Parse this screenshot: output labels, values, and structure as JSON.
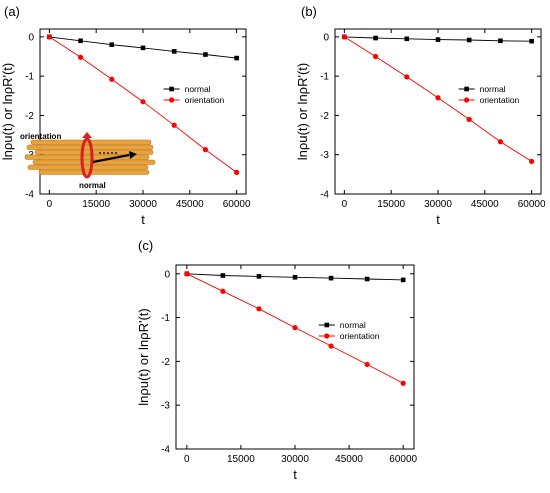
{
  "figure": {
    "inset": {
      "label_orientation": "orientation",
      "label_normal": "normal"
    }
  },
  "colors": {
    "normal": "#000000",
    "orientation": "#ff0000",
    "fiber": "#e8a33c",
    "fiber_edge": "#b8741a"
  },
  "chart_data": [
    {
      "panel_label": "(a)",
      "type": "line",
      "xlabel": "t",
      "ylabel": "lnρu(t) or lnρR'(t)",
      "xlim": [
        -3000,
        63000
      ],
      "ylim": [
        -4,
        0.2
      ],
      "xticks": [
        0,
        15000,
        30000,
        45000,
        60000
      ],
      "yticks": [
        0,
        -1,
        -2,
        -3,
        -4
      ],
      "x": [
        0,
        10000,
        20000,
        30000,
        40000,
        50000,
        60000
      ],
      "series": [
        {
          "name": "normal",
          "marker": "square",
          "color": "#000000",
          "values": [
            0,
            -0.1,
            -0.2,
            -0.28,
            -0.37,
            -0.45,
            -0.54
          ]
        },
        {
          "name": "orientation",
          "marker": "circle",
          "color": "#ff0000",
          "values": [
            0,
            -0.52,
            -1.08,
            -1.65,
            -2.25,
            -2.87,
            -3.45
          ]
        }
      ],
      "legend": "top-right, inside"
    },
    {
      "panel_label": "(b)",
      "type": "line",
      "xlabel": "t",
      "ylabel": "lnρu(t) or lnρR'(t)",
      "xlim": [
        -3000,
        63000
      ],
      "ylim": [
        -4,
        0.2
      ],
      "xticks": [
        0,
        15000,
        30000,
        45000,
        60000
      ],
      "yticks": [
        0,
        -1,
        -2,
        -3,
        -4
      ],
      "x": [
        0,
        10000,
        20000,
        30000,
        40000,
        50000,
        60000
      ],
      "series": [
        {
          "name": "normal",
          "marker": "square",
          "color": "#000000",
          "values": [
            0,
            -0.03,
            -0.05,
            -0.07,
            -0.08,
            -0.1,
            -0.11
          ]
        },
        {
          "name": "orientation",
          "marker": "circle",
          "color": "#ff0000",
          "values": [
            0,
            -0.5,
            -1.02,
            -1.55,
            -2.1,
            -2.67,
            -3.17
          ]
        }
      ],
      "legend": "top-right, inside"
    },
    {
      "panel_label": "(c)",
      "type": "line",
      "xlabel": "t",
      "ylabel": "lnρu(t) or lnρR'(t)",
      "xlim": [
        -3000,
        63000
      ],
      "ylim": [
        -4,
        0.2
      ],
      "xticks": [
        0,
        15000,
        30000,
        45000,
        60000
      ],
      "yticks": [
        0,
        -1,
        -2,
        -3,
        -4
      ],
      "x": [
        0,
        10000,
        20000,
        30000,
        40000,
        50000,
        60000
      ],
      "series": [
        {
          "name": "normal",
          "marker": "square",
          "color": "#000000",
          "values": [
            0,
            -0.04,
            -0.06,
            -0.08,
            -0.1,
            -0.12,
            -0.14
          ]
        },
        {
          "name": "orientation",
          "marker": "circle",
          "color": "#ff0000",
          "values": [
            0,
            -0.4,
            -0.8,
            -1.23,
            -1.65,
            -2.07,
            -2.5
          ]
        }
      ],
      "legend": "top-right, inside"
    }
  ]
}
